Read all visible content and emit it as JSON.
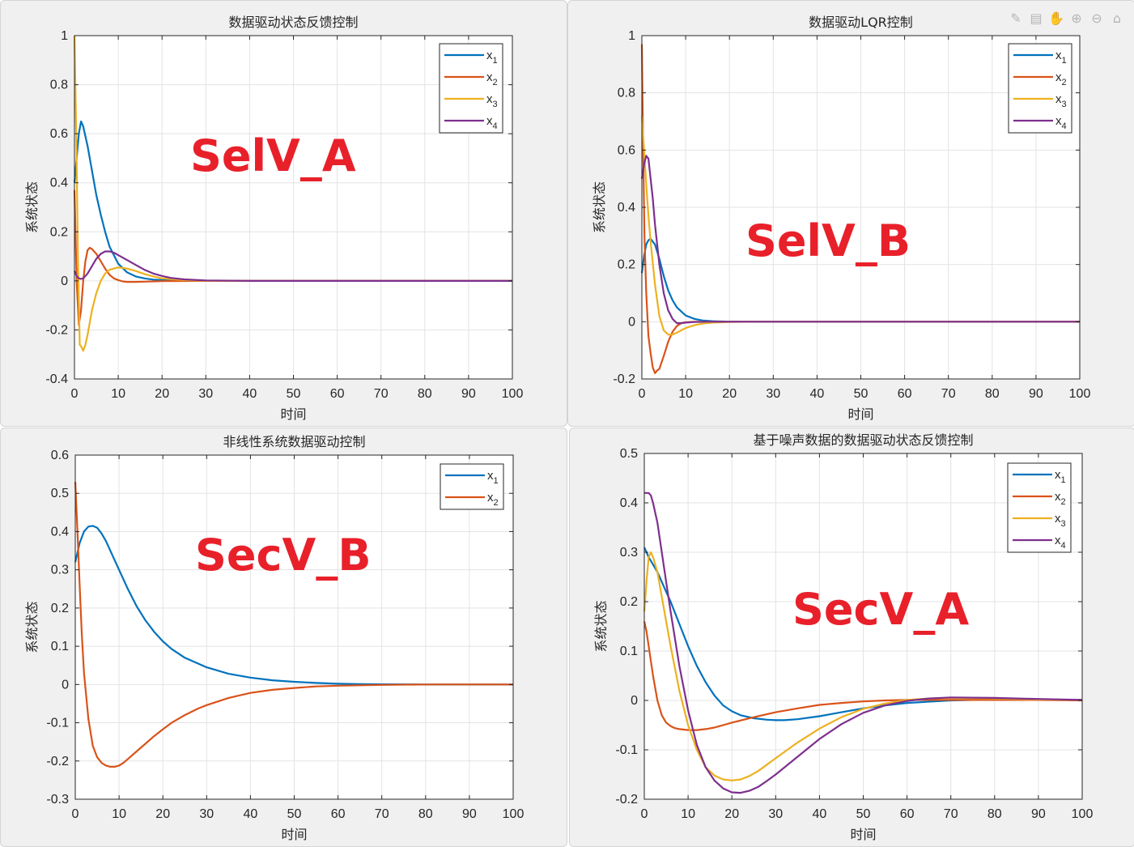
{
  "toolbar": {
    "icons": [
      {
        "name": "brush-icon",
        "glyph": "✎"
      },
      {
        "name": "data-tip-icon",
        "glyph": "▤"
      },
      {
        "name": "pan-icon",
        "glyph": "✋"
      },
      {
        "name": "zoom-in-icon",
        "glyph": "⊕"
      },
      {
        "name": "zoom-out-icon",
        "glyph": "⊖"
      },
      {
        "name": "home-icon",
        "glyph": "⌂"
      }
    ]
  },
  "colors": {
    "x1": "#0072bd",
    "x2": "#d95319",
    "x3": "#edb120",
    "x4": "#7e2f8e",
    "overlay": "#e8202a"
  },
  "chart_data": [
    {
      "type": "line",
      "title": "数据驱动状态反馈控制",
      "xlabel": "时间",
      "ylabel": "系统状态",
      "overlay": "SelV_A",
      "xlim": [
        0,
        100
      ],
      "ylim": [
        -0.4,
        1
      ],
      "xticks": [
        0,
        10,
        20,
        30,
        40,
        50,
        60,
        70,
        80,
        90,
        100
      ],
      "yticks": [
        -0.4,
        -0.2,
        0,
        0.2,
        0.4,
        0.6,
        0.8,
        1
      ],
      "yticklabels": [
        "-0.4",
        "-0.2",
        "0",
        "0.2",
        "0.4",
        "0.6",
        "0.8",
        "1"
      ],
      "grid": true,
      "legend": "top-right",
      "series": [
        {
          "name": "x1",
          "color": "#0072bd",
          "x": [
            0,
            0.5,
            1,
            1.5,
            2,
            3,
            4,
            5,
            6,
            7,
            8,
            10,
            12,
            14,
            16,
            18,
            20,
            25,
            30,
            40,
            100
          ],
          "y": [
            0.4,
            0.5,
            0.6,
            0.65,
            0.63,
            0.55,
            0.45,
            0.35,
            0.27,
            0.2,
            0.14,
            0.07,
            0.035,
            0.018,
            0.01,
            0.005,
            0.003,
            0.001,
            0,
            0,
            0
          ]
        },
        {
          "name": "x2",
          "color": "#d95319",
          "x": [
            0,
            0.5,
            1,
            1.5,
            2,
            2.5,
            3,
            3.5,
            4,
            5,
            6,
            7,
            8,
            9,
            10,
            11,
            12,
            14,
            16,
            18,
            20,
            30,
            100
          ],
          "y": [
            0.37,
            0,
            -0.18,
            -0.12,
            0,
            0.08,
            0.125,
            0.135,
            0.13,
            0.11,
            0.08,
            0.05,
            0.025,
            0.01,
            0.003,
            -0.002,
            -0.004,
            -0.004,
            -0.003,
            -0.002,
            -0.001,
            0,
            0
          ]
        },
        {
          "name": "x3",
          "color": "#edb120",
          "x": [
            0,
            0.4,
            0.8,
            1.2,
            1.6,
            2,
            2.5,
            3,
            4,
            5,
            6,
            7,
            8,
            10,
            12,
            14,
            16,
            18,
            20,
            25,
            30,
            40,
            100
          ],
          "y": [
            1,
            0.6,
            0.1,
            -0.26,
            -0.27,
            -0.285,
            -0.26,
            -0.22,
            -0.12,
            -0.05,
            0,
            0.03,
            0.045,
            0.055,
            0.05,
            0.04,
            0.028,
            0.018,
            0.01,
            0.003,
            0.001,
            0,
            0
          ]
        },
        {
          "name": "x4",
          "color": "#7e2f8e",
          "x": [
            0,
            0.5,
            1,
            1.5,
            2,
            3,
            4,
            5,
            6,
            7,
            8,
            9,
            10,
            12,
            14,
            16,
            18,
            20,
            22,
            25,
            30,
            40,
            100
          ],
          "y": [
            0.04,
            0.02,
            0.01,
            0.008,
            0.01,
            0.03,
            0.06,
            0.09,
            0.11,
            0.12,
            0.12,
            0.115,
            0.105,
            0.085,
            0.065,
            0.045,
            0.03,
            0.02,
            0.012,
            0.006,
            0.002,
            0,
            0
          ]
        }
      ]
    },
    {
      "type": "line",
      "title": "数据驱动LQR控制",
      "xlabel": "时间",
      "ylabel": "系统状态",
      "overlay": "SelV_B",
      "xlim": [
        0,
        100
      ],
      "ylim": [
        -0.2,
        1
      ],
      "xticks": [
        0,
        10,
        20,
        30,
        40,
        50,
        60,
        70,
        80,
        90,
        100
      ],
      "yticks": [
        -0.2,
        0,
        0.2,
        0.4,
        0.6,
        0.8,
        1
      ],
      "yticklabels": [
        "-0.2",
        "0",
        "0.2",
        "0.4",
        "0.6",
        "0.8",
        "1"
      ],
      "grid": true,
      "legend": "top-right",
      "series": [
        {
          "name": "x1",
          "color": "#0072bd",
          "x": [
            0,
            0.5,
            1,
            1.5,
            2,
            3,
            4,
            5,
            6,
            7,
            8,
            10,
            12,
            14,
            16,
            20,
            25,
            100
          ],
          "y": [
            0.17,
            0.23,
            0.27,
            0.285,
            0.29,
            0.27,
            0.22,
            0.16,
            0.11,
            0.075,
            0.05,
            0.022,
            0.01,
            0.004,
            0.002,
            0,
            0,
            0
          ]
        },
        {
          "name": "x2",
          "color": "#d95319",
          "x": [
            0,
            0.3,
            0.6,
            1,
            1.5,
            2,
            2.5,
            3,
            3.5,
            4,
            5,
            6,
            7,
            8,
            9,
            10,
            12,
            15,
            20,
            100
          ],
          "y": [
            0.97,
            0.6,
            0.3,
            0.1,
            -0.05,
            -0.11,
            -0.16,
            -0.18,
            -0.17,
            -0.165,
            -0.12,
            -0.07,
            -0.035,
            -0.015,
            -0.005,
            -0.002,
            0,
            0,
            0,
            0
          ]
        },
        {
          "name": "x3",
          "color": "#edb120",
          "x": [
            0,
            0.5,
            1,
            1.5,
            2,
            3,
            4,
            5,
            6,
            7,
            8,
            9,
            10,
            12,
            14,
            16,
            20,
            25,
            100
          ],
          "y": [
            0.72,
            0.6,
            0.48,
            0.37,
            0.28,
            0.13,
            0.02,
            -0.03,
            -0.045,
            -0.045,
            -0.038,
            -0.03,
            -0.022,
            -0.012,
            -0.006,
            -0.003,
            -0.001,
            0,
            0
          ]
        },
        {
          "name": "x4",
          "color": "#7e2f8e",
          "x": [
            0,
            0.5,
            1,
            1.5,
            2,
            2.5,
            3,
            4,
            5,
            6,
            7,
            8,
            9,
            10,
            12,
            15,
            20,
            100
          ],
          "y": [
            0.5,
            0.55,
            0.58,
            0.57,
            0.5,
            0.43,
            0.34,
            0.2,
            0.1,
            0.04,
            0.01,
            -0.005,
            -0.005,
            -0.003,
            -0.001,
            0,
            0,
            0
          ]
        }
      ]
    },
    {
      "type": "line",
      "title": "非线性系统数据驱动控制",
      "xlabel": "时间",
      "ylabel": "系统状态",
      "overlay": "SecV_B",
      "xlim": [
        0,
        100
      ],
      "ylim": [
        -0.3,
        0.6
      ],
      "xticks": [
        0,
        10,
        20,
        30,
        40,
        50,
        60,
        70,
        80,
        90,
        100
      ],
      "yticks": [
        -0.3,
        -0.2,
        -0.1,
        0,
        0.1,
        0.2,
        0.3,
        0.4,
        0.5,
        0.6
      ],
      "yticklabels": [
        "-0.3",
        "-0.2",
        "-0.1",
        "0",
        "0.1",
        "0.2",
        "0.3",
        "0.4",
        "0.5",
        "0.6"
      ],
      "grid": true,
      "legend": "top-right",
      "series": [
        {
          "name": "x1",
          "color": "#0072bd",
          "x": [
            0,
            1,
            2,
            3,
            4,
            5,
            6,
            7,
            8,
            10,
            12,
            14,
            16,
            18,
            20,
            22,
            25,
            30,
            35,
            40,
            45,
            50,
            55,
            60,
            65,
            70,
            80,
            90,
            100
          ],
          "y": [
            0.32,
            0.37,
            0.4,
            0.413,
            0.415,
            0.41,
            0.395,
            0.375,
            0.35,
            0.3,
            0.25,
            0.205,
            0.168,
            0.138,
            0.113,
            0.093,
            0.07,
            0.045,
            0.028,
            0.018,
            0.011,
            0.007,
            0.004,
            0.002,
            0.001,
            0.0005,
            0,
            0,
            0
          ]
        },
        {
          "name": "x2",
          "color": "#d95319",
          "x": [
            0,
            0.5,
            1,
            1.5,
            2,
            3,
            4,
            5,
            6,
            7,
            8,
            9,
            10,
            11,
            12,
            14,
            16,
            18,
            20,
            22,
            25,
            28,
            30,
            35,
            40,
            45,
            50,
            55,
            60,
            65,
            70,
            80,
            100
          ],
          "y": [
            0.53,
            0.4,
            0.26,
            0.13,
            0.03,
            -0.09,
            -0.16,
            -0.19,
            -0.205,
            -0.212,
            -0.215,
            -0.215,
            -0.212,
            -0.205,
            -0.195,
            -0.175,
            -0.155,
            -0.135,
            -0.117,
            -0.1,
            -0.08,
            -0.063,
            -0.054,
            -0.035,
            -0.022,
            -0.014,
            -0.009,
            -0.005,
            -0.003,
            -0.002,
            -0.001,
            0,
            0
          ]
        }
      ]
    },
    {
      "type": "line",
      "title": "基于噪声数据的数据驱动状态反馈控制",
      "xlabel": "时间",
      "ylabel": "系统状态",
      "overlay": "SecV_A",
      "xlim": [
        0,
        100
      ],
      "ylim": [
        -0.2,
        0.5
      ],
      "xticks": [
        0,
        10,
        20,
        30,
        40,
        50,
        60,
        70,
        80,
        90,
        100
      ],
      "yticks": [
        -0.2,
        -0.1,
        0,
        0.1,
        0.2,
        0.3,
        0.4,
        0.5
      ],
      "yticklabels": [
        "-0.2",
        "-0.1",
        "0",
        "0.1",
        "0.2",
        "0.3",
        "0.4",
        "0.5"
      ],
      "grid": true,
      "legend": "top-right",
      "series": [
        {
          "name": "x1",
          "color": "#0072bd",
          "x": [
            0,
            1,
            2,
            3,
            4,
            5,
            6,
            8,
            10,
            12,
            14,
            16,
            18,
            20,
            22,
            25,
            28,
            30,
            32,
            35,
            40,
            45,
            50,
            55,
            60,
            70,
            80,
            90,
            100
          ],
          "y": [
            0.31,
            0.29,
            0.275,
            0.26,
            0.24,
            0.22,
            0.2,
            0.155,
            0.11,
            0.07,
            0.037,
            0.01,
            -0.01,
            -0.022,
            -0.03,
            -0.036,
            -0.039,
            -0.04,
            -0.04,
            -0.038,
            -0.032,
            -0.024,
            -0.016,
            -0.01,
            -0.005,
            0,
            0.002,
            0.002,
            0.001
          ]
        },
        {
          "name": "x2",
          "color": "#d95319",
          "x": [
            0,
            0.5,
            1,
            2,
            3,
            4,
            5,
            6,
            7,
            8,
            10,
            12,
            14,
            16,
            18,
            20,
            25,
            30,
            35,
            40,
            45,
            50,
            55,
            60,
            70,
            80,
            90,
            100
          ],
          "y": [
            0.16,
            0.14,
            0.11,
            0.05,
            0.0,
            -0.03,
            -0.045,
            -0.052,
            -0.056,
            -0.058,
            -0.06,
            -0.06,
            -0.058,
            -0.055,
            -0.05,
            -0.045,
            -0.034,
            -0.024,
            -0.016,
            -0.009,
            -0.005,
            -0.002,
            0,
            0.001,
            0.001,
            0.001,
            0.001,
            0
          ]
        },
        {
          "name": "x3",
          "color": "#edb120",
          "x": [
            0,
            0.5,
            1,
            1.5,
            2,
            3,
            4,
            5,
            6,
            8,
            10,
            12,
            14,
            16,
            18,
            20,
            22,
            24,
            26,
            28,
            30,
            35,
            40,
            45,
            50,
            55,
            60,
            65,
            70,
            80,
            90,
            100
          ],
          "y": [
            0.18,
            0.24,
            0.29,
            0.3,
            0.29,
            0.26,
            0.21,
            0.16,
            0.11,
            0.02,
            -0.05,
            -0.1,
            -0.135,
            -0.152,
            -0.16,
            -0.162,
            -0.16,
            -0.153,
            -0.143,
            -0.13,
            -0.117,
            -0.085,
            -0.057,
            -0.034,
            -0.017,
            -0.006,
            0.001,
            0.004,
            0.005,
            0.004,
            0.002,
            0.001
          ]
        },
        {
          "name": "x4",
          "color": "#7e2f8e",
          "x": [
            0,
            0.5,
            1,
            1.5,
            2,
            3,
            4,
            5,
            6,
            8,
            10,
            12,
            14,
            16,
            18,
            20,
            22,
            24,
            26,
            28,
            30,
            35,
            40,
            45,
            50,
            55,
            60,
            65,
            70,
            80,
            90,
            100
          ],
          "y": [
            0.42,
            0.42,
            0.42,
            0.415,
            0.4,
            0.36,
            0.3,
            0.24,
            0.18,
            0.07,
            -0.02,
            -0.09,
            -0.135,
            -0.162,
            -0.178,
            -0.186,
            -0.187,
            -0.183,
            -0.175,
            -0.163,
            -0.15,
            -0.114,
            -0.078,
            -0.048,
            -0.025,
            -0.01,
            -0.001,
            0.004,
            0.006,
            0.005,
            0.003,
            0.001
          ]
        }
      ]
    }
  ]
}
